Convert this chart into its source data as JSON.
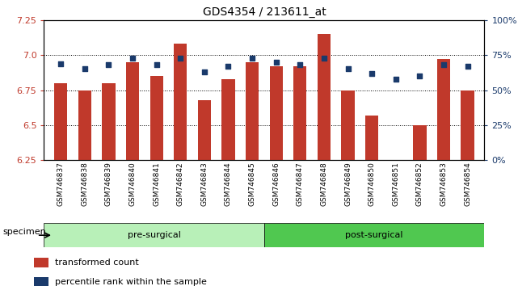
{
  "title": "GDS4354 / 213611_at",
  "samples": [
    "GSM746837",
    "GSM746838",
    "GSM746839",
    "GSM746840",
    "GSM746841",
    "GSM746842",
    "GSM746843",
    "GSM746844",
    "GSM746845",
    "GSM746846",
    "GSM746847",
    "GSM746848",
    "GSM746849",
    "GSM746850",
    "GSM746851",
    "GSM746852",
    "GSM746853",
    "GSM746854"
  ],
  "bar_values": [
    6.8,
    6.75,
    6.8,
    6.95,
    6.85,
    7.08,
    6.68,
    6.83,
    6.95,
    6.92,
    6.92,
    7.15,
    6.75,
    6.57,
    6.25,
    6.5,
    6.97,
    6.75
  ],
  "percentile_values": [
    69,
    65,
    68,
    73,
    68,
    73,
    63,
    67,
    73,
    70,
    68,
    73,
    65,
    62,
    58,
    60,
    68,
    67
  ],
  "ylim_left": [
    6.25,
    7.25
  ],
  "ylim_right": [
    0,
    100
  ],
  "yticks_left": [
    6.25,
    6.5,
    6.75,
    7.0,
    7.25
  ],
  "yticks_right": [
    0,
    25,
    50,
    75,
    100
  ],
  "ytick_labels_right": [
    "0%",
    "25%",
    "50%",
    "75%",
    "100%"
  ],
  "bar_color": "#C0392B",
  "percentile_color": "#1A3A6B",
  "group1_label": "pre-surgical",
  "group2_label": "post-surgical",
  "group1_count": 9,
  "group1_bg": "#B8F0B8",
  "group2_bg": "#50C850",
  "specimen_label": "specimen",
  "legend_bar_label": "transformed count",
  "legend_pct_label": "percentile rank within the sample",
  "bar_width": 0.55,
  "xlabel_bg": "#C8C8C8"
}
